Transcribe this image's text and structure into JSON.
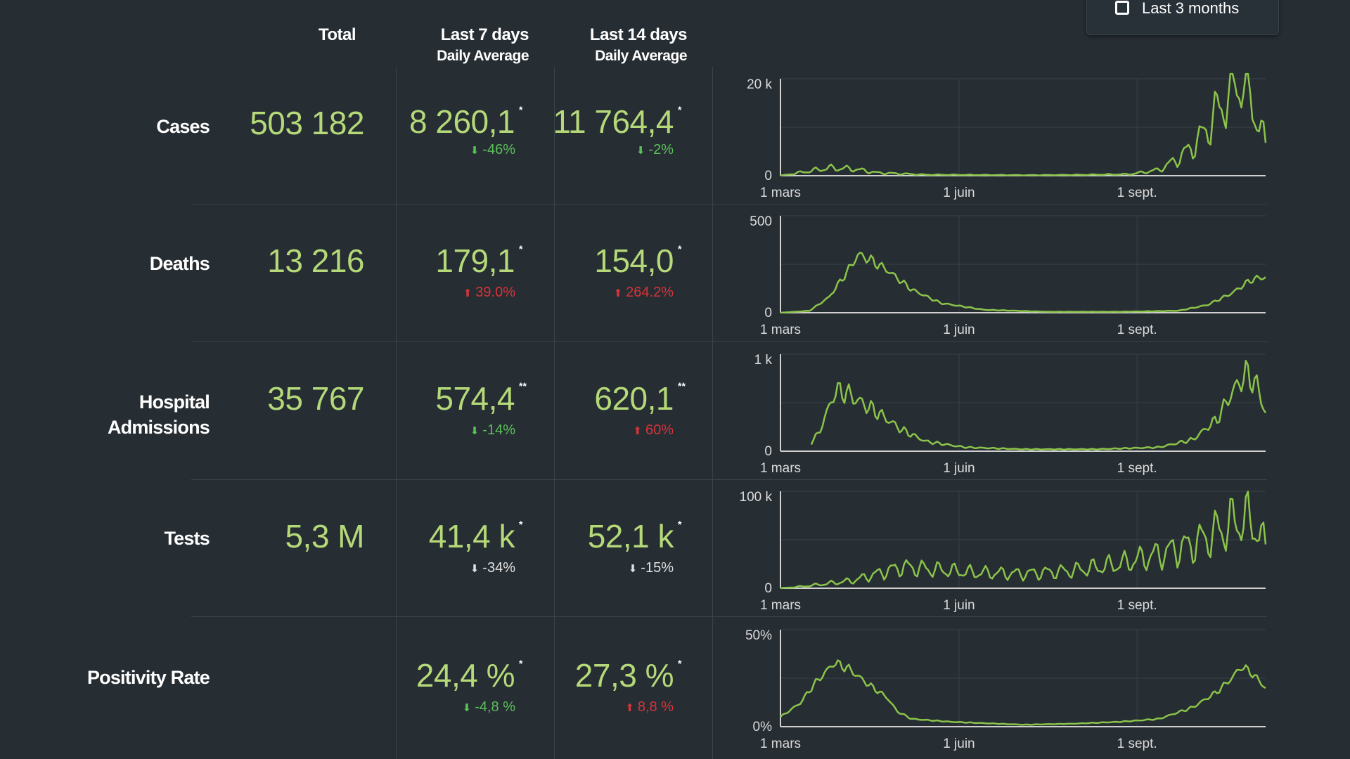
{
  "toggle": {
    "label": "Last 3 months",
    "checked": false
  },
  "headers": {
    "total": "Total",
    "last7": "Last 7 days",
    "last7_sub": "Daily Average",
    "last14": "Last 14 days",
    "last14_sub": "Daily Average"
  },
  "rows": [
    {
      "label": "Cases",
      "total": "503 182",
      "avg7": "8 260,1",
      "avg7_mark": "*",
      "avg7_delta": "-46%",
      "avg7_dir": "down",
      "avg7_color": "green",
      "avg14": "11 764,4",
      "avg14_mark": "*",
      "avg14_delta": "-2%",
      "avg14_dir": "down",
      "avg14_color": "green"
    },
    {
      "label": "Deaths",
      "total": "13 216",
      "avg7": "179,1",
      "avg7_mark": "*",
      "avg7_delta": "39.0%",
      "avg7_dir": "up",
      "avg7_color": "red",
      "avg14": "154,0",
      "avg14_mark": "*",
      "avg14_delta": "264.2%",
      "avg14_dir": "up",
      "avg14_color": "red"
    },
    {
      "label": "Hospital Admissions",
      "label_line1": "Hospital",
      "label_line2": "Admissions",
      "total": "35 767",
      "avg7": "574,4",
      "avg7_mark": "**",
      "avg7_delta": "-14%",
      "avg7_dir": "down",
      "avg7_color": "green",
      "avg14": "620,1",
      "avg14_mark": "**",
      "avg14_delta": "60%",
      "avg14_dir": "up",
      "avg14_color": "red"
    },
    {
      "label": "Tests",
      "total": "5,3 M",
      "avg7": "41,4 k",
      "avg7_mark": "*",
      "avg7_delta": "-34%",
      "avg7_dir": "down",
      "avg7_color": "grey",
      "avg14": "52,1 k",
      "avg14_mark": "*",
      "avg14_delta": "-15%",
      "avg14_dir": "down",
      "avg14_color": "grey"
    },
    {
      "label": "Positivity Rate",
      "total": "",
      "avg7": "24,4 %",
      "avg7_mark": "*",
      "avg7_delta": "-4,8 %",
      "avg7_dir": "down",
      "avg7_color": "green",
      "avg14": "27,3 %",
      "avg14_mark": "*",
      "avg14_delta": "8,8 %",
      "avg14_dir": "up",
      "avg14_color": "red"
    }
  ],
  "colors": {
    "line": "#8bc34a",
    "value": "#b5d979",
    "green": "#5cc05a",
    "red": "#d6343a",
    "background": "#262d33"
  },
  "chart_data": [
    {
      "type": "line",
      "series_name": "",
      "x_ticks": [
        "1 mars",
        "1 juin",
        "1 sept."
      ],
      "y_ticks": [
        "0",
        "20 k"
      ],
      "ylim": [
        0,
        20000
      ],
      "keypoints": [
        [
          0,
          0
        ],
        [
          0.05,
          800
        ],
        [
          0.1,
          1600
        ],
        [
          0.15,
          1400
        ],
        [
          0.2,
          600
        ],
        [
          0.3,
          200
        ],
        [
          0.5,
          100
        ],
        [
          0.6,
          150
        ],
        [
          0.72,
          300
        ],
        [
          0.78,
          1200
        ],
        [
          0.82,
          3500
        ],
        [
          0.86,
          7000
        ],
        [
          0.9,
          13000
        ],
        [
          0.93,
          18000
        ],
        [
          0.95,
          20500
        ],
        [
          0.97,
          16000
        ],
        [
          1,
          6000
        ]
      ],
      "noise": 0.35,
      "period": 7
    },
    {
      "type": "line",
      "series_name": "",
      "x_ticks": [
        "1 mars",
        "1 juin",
        "1 sept."
      ],
      "y_ticks": [
        "0",
        "500"
      ],
      "ylim": [
        0,
        500
      ],
      "keypoints": [
        [
          0,
          0
        ],
        [
          0.06,
          10
        ],
        [
          0.1,
          80
        ],
        [
          0.14,
          220
        ],
        [
          0.16,
          300
        ],
        [
          0.18,
          280
        ],
        [
          0.22,
          220
        ],
        [
          0.27,
          120
        ],
        [
          0.33,
          50
        ],
        [
          0.42,
          15
        ],
        [
          0.55,
          5
        ],
        [
          0.7,
          5
        ],
        [
          0.82,
          10
        ],
        [
          0.88,
          40
        ],
        [
          0.93,
          100
        ],
        [
          0.97,
          170
        ],
        [
          1,
          185
        ]
      ],
      "noise": 0.08,
      "period": 5
    },
    {
      "type": "line",
      "series_name": "",
      "x_ticks": [
        "1 mars",
        "1 juin",
        "1 sept."
      ],
      "y_ticks": [
        "0",
        "1 k"
      ],
      "ylim": [
        0,
        1000
      ],
      "start": 0.06,
      "keypoints": [
        [
          0.06,
          60
        ],
        [
          0.08,
          200
        ],
        [
          0.1,
          450
        ],
        [
          0.11,
          600
        ],
        [
          0.13,
          620
        ],
        [
          0.16,
          520
        ],
        [
          0.2,
          400
        ],
        [
          0.25,
          220
        ],
        [
          0.3,
          100
        ],
        [
          0.38,
          40
        ],
        [
          0.5,
          20
        ],
        [
          0.65,
          20
        ],
        [
          0.78,
          40
        ],
        [
          0.85,
          120
        ],
        [
          0.9,
          330
        ],
        [
          0.93,
          600
        ],
        [
          0.96,
          800
        ],
        [
          0.98,
          700
        ],
        [
          1,
          400
        ]
      ],
      "noise": 0.15,
      "period": 5
    },
    {
      "type": "line",
      "series_name": "",
      "x_ticks": [
        "1 mars",
        "1 juin",
        "1 sept."
      ],
      "y_ticks": [
        "0",
        "100 k"
      ],
      "ylim": [
        0,
        100000
      ],
      "keypoints": [
        [
          0,
          0
        ],
        [
          0.05,
          2000
        ],
        [
          0.1,
          5000
        ],
        [
          0.15,
          8000
        ],
        [
          0.2,
          15000
        ],
        [
          0.25,
          22000
        ],
        [
          0.3,
          20000
        ],
        [
          0.4,
          16000
        ],
        [
          0.5,
          15000
        ],
        [
          0.6,
          18000
        ],
        [
          0.7,
          25000
        ],
        [
          0.78,
          35000
        ],
        [
          0.85,
          45000
        ],
        [
          0.9,
          58000
        ],
        [
          0.95,
          72000
        ],
        [
          0.98,
          65000
        ],
        [
          1,
          40000
        ]
      ],
      "noise": 0.35,
      "period": 7
    },
    {
      "type": "line",
      "series_name": "",
      "x_ticks": [
        "1 mars",
        "1 juin",
        "1 sept."
      ],
      "y_ticks": [
        "0%",
        "50%"
      ],
      "ylim": [
        0,
        50
      ],
      "keypoints": [
        [
          0,
          5
        ],
        [
          0.04,
          12
        ],
        [
          0.07,
          22
        ],
        [
          0.1,
          30
        ],
        [
          0.11,
          33
        ],
        [
          0.14,
          30
        ],
        [
          0.18,
          22
        ],
        [
          0.22,
          15
        ],
        [
          0.24,
          8
        ],
        [
          0.27,
          4
        ],
        [
          0.35,
          2.5
        ],
        [
          0.5,
          1
        ],
        [
          0.6,
          1.5
        ],
        [
          0.7,
          2.5
        ],
        [
          0.78,
          4
        ],
        [
          0.85,
          10
        ],
        [
          0.9,
          18
        ],
        [
          0.93,
          25
        ],
        [
          0.95,
          31
        ],
        [
          0.97,
          28
        ],
        [
          1,
          20
        ]
      ],
      "noise": 0.06,
      "period": 5
    }
  ]
}
